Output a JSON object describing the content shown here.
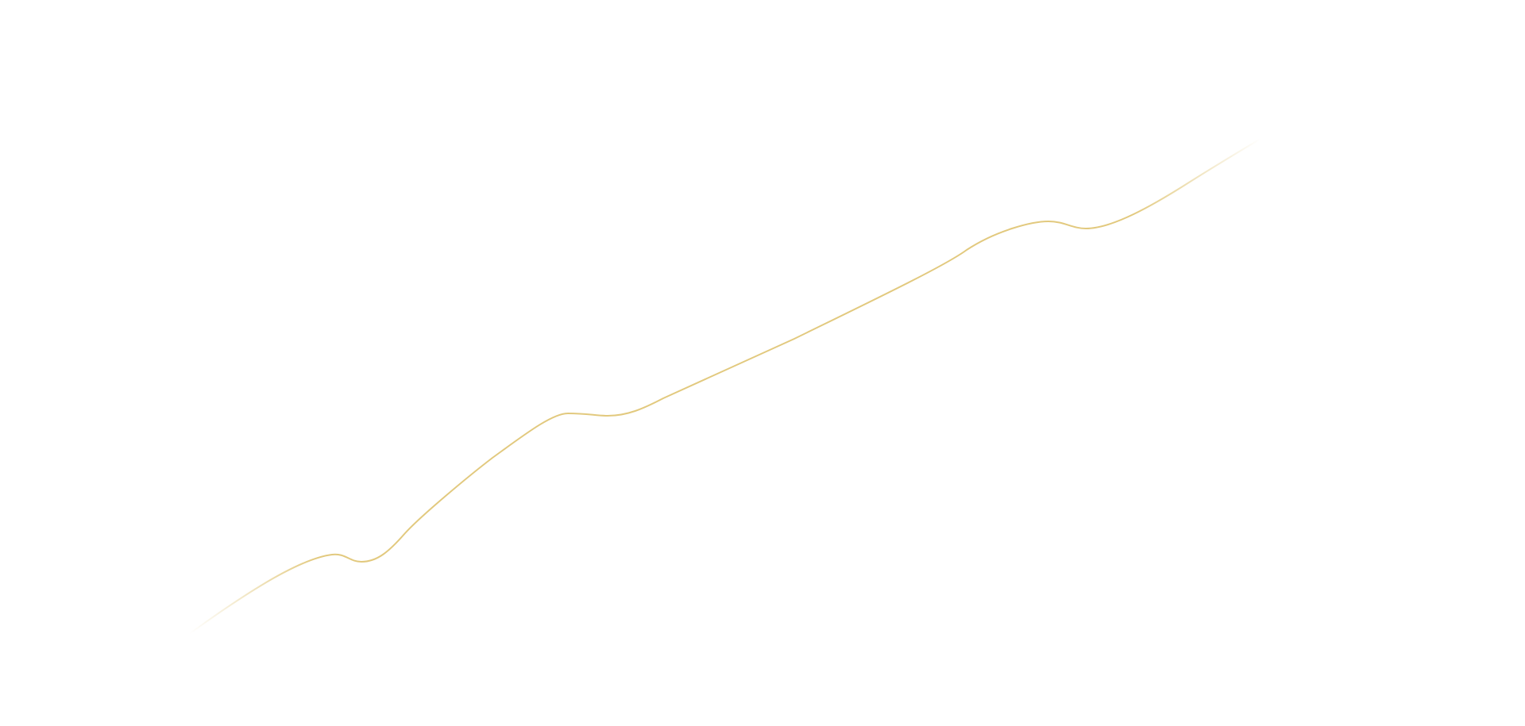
{
  "background_color": "#ffffff",
  "line": {
    "color": "#e2c97e",
    "ends_fade_out": true
  }
}
